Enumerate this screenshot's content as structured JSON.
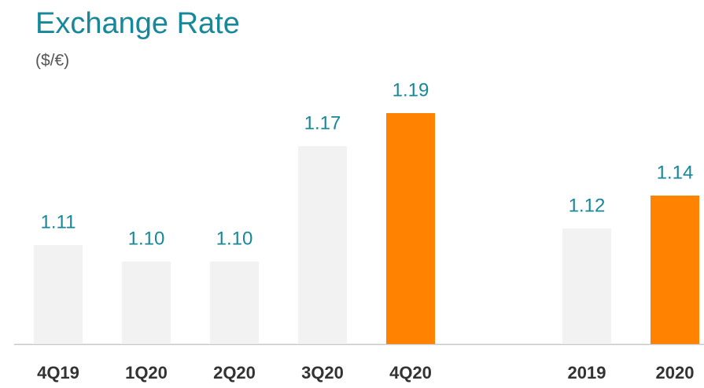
{
  "chart_data": {
    "type": "bar",
    "title": "Exchange Rate",
    "subtitle": "($/€)",
    "categories": [
      "4Q19",
      "1Q20",
      "2Q20",
      "3Q20",
      "4Q20",
      null,
      "2019",
      "2020"
    ],
    "values": [
      1.11,
      1.1,
      1.1,
      1.17,
      1.19,
      null,
      1.12,
      1.14
    ],
    "value_labels": [
      "1.11",
      "1.10",
      "1.10",
      "1.17",
      "1.19",
      null,
      "1.12",
      "1.14"
    ],
    "colors": [
      "#f2f2f2",
      "#f2f2f2",
      "#f2f2f2",
      "#f2f2f2",
      "#ff8200",
      null,
      "#f2f2f2",
      "#ff8200"
    ],
    "ylim": [
      1.05,
      1.2
    ],
    "grid": false
  }
}
